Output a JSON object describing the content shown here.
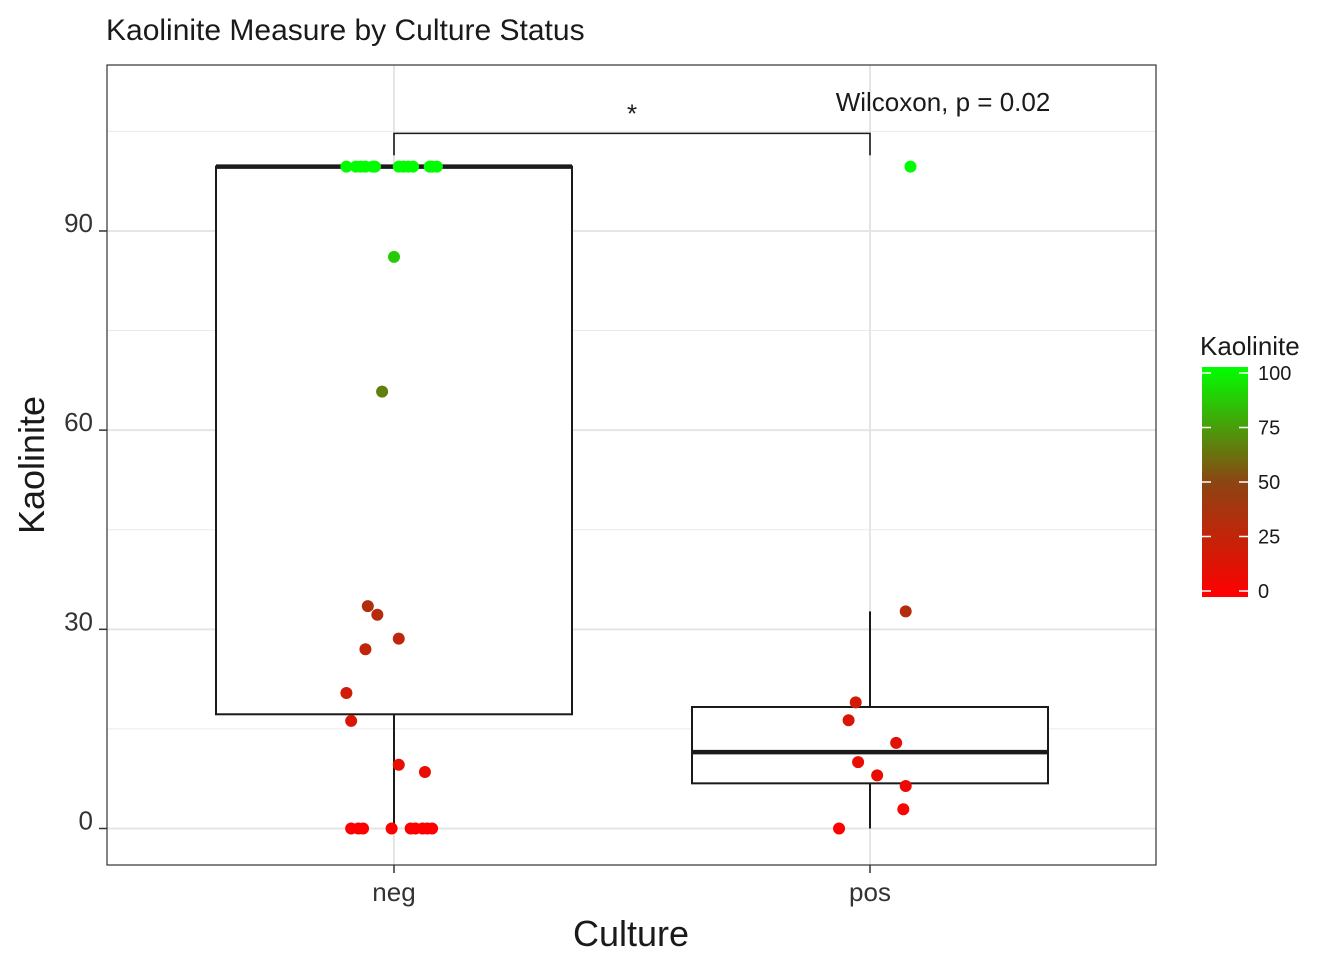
{
  "chart_data": {
    "type": "boxplot",
    "title": "Kaolinite Measure by Culture Status",
    "xlabel": "Culture",
    "ylabel": "Kaolinite",
    "categories": [
      "neg",
      "pos"
    ],
    "ylim": [
      -5.5,
      115
    ],
    "yticks": [
      0,
      30,
      60,
      90
    ],
    "grid": true,
    "boxes": [
      {
        "category": "neg",
        "lower_whisker": 0,
        "q1": 17.2,
        "median": 99.7,
        "q3": 99.7,
        "upper_whisker": 99.7
      },
      {
        "category": "pos",
        "lower_whisker": 0,
        "q1": 6.8,
        "median": 11.5,
        "q3": 18.3,
        "upper_whisker": 32.7
      }
    ],
    "points": [
      {
        "category": "neg",
        "offset": -0.1,
        "value": 99.7
      },
      {
        "category": "neg",
        "offset": -0.08,
        "value": 99.7
      },
      {
        "category": "neg",
        "offset": -0.07,
        "value": 99.7
      },
      {
        "category": "neg",
        "offset": -0.06,
        "value": 99.7
      },
      {
        "category": "neg",
        "offset": -0.045,
        "value": 99.7
      },
      {
        "category": "neg",
        "offset": -0.04,
        "value": 99.7
      },
      {
        "category": "neg",
        "offset": 0.01,
        "value": 99.7
      },
      {
        "category": "neg",
        "offset": 0.02,
        "value": 99.7
      },
      {
        "category": "neg",
        "offset": 0.03,
        "value": 99.7
      },
      {
        "category": "neg",
        "offset": 0.04,
        "value": 99.7
      },
      {
        "category": "neg",
        "offset": 0.075,
        "value": 99.7
      },
      {
        "category": "neg",
        "offset": 0.08,
        "value": 99.7
      },
      {
        "category": "neg",
        "offset": 0.09,
        "value": 99.7
      },
      {
        "category": "neg",
        "offset": 0.0,
        "value": 86.1
      },
      {
        "category": "neg",
        "offset": -0.025,
        "value": 65.8
      },
      {
        "category": "neg",
        "offset": -0.055,
        "value": 33.5
      },
      {
        "category": "neg",
        "offset": -0.035,
        "value": 32.2
      },
      {
        "category": "neg",
        "offset": 0.01,
        "value": 28.6
      },
      {
        "category": "neg",
        "offset": -0.06,
        "value": 27.0
      },
      {
        "category": "neg",
        "offset": -0.1,
        "value": 20.4
      },
      {
        "category": "neg",
        "offset": -0.09,
        "value": 16.2
      },
      {
        "category": "neg",
        "offset": 0.01,
        "value": 9.6
      },
      {
        "category": "neg",
        "offset": 0.065,
        "value": 8.5
      },
      {
        "category": "neg",
        "offset": -0.09,
        "value": 0
      },
      {
        "category": "neg",
        "offset": -0.075,
        "value": 0
      },
      {
        "category": "neg",
        "offset": -0.065,
        "value": 0
      },
      {
        "category": "neg",
        "offset": -0.005,
        "value": 0
      },
      {
        "category": "neg",
        "offset": 0.035,
        "value": 0
      },
      {
        "category": "neg",
        "offset": 0.045,
        "value": 0
      },
      {
        "category": "neg",
        "offset": 0.06,
        "value": 0
      },
      {
        "category": "neg",
        "offset": 0.07,
        "value": 0
      },
      {
        "category": "neg",
        "offset": 0.08,
        "value": 0
      },
      {
        "category": "pos",
        "offset": 0.085,
        "value": 99.7
      },
      {
        "category": "pos",
        "offset": 0.075,
        "value": 32.7
      },
      {
        "category": "pos",
        "offset": -0.03,
        "value": 19.0
      },
      {
        "category": "pos",
        "offset": -0.045,
        "value": 16.3
      },
      {
        "category": "pos",
        "offset": 0.055,
        "value": 12.9
      },
      {
        "category": "pos",
        "offset": -0.025,
        "value": 10.0
      },
      {
        "category": "pos",
        "offset": 0.015,
        "value": 8.0
      },
      {
        "category": "pos",
        "offset": 0.075,
        "value": 6.4
      },
      {
        "category": "pos",
        "offset": 0.07,
        "value": 2.9
      },
      {
        "category": "pos",
        "offset": -0.065,
        "value": 0
      }
    ],
    "significance": {
      "from": "neg",
      "to": "pos",
      "bracket_y": 104.7,
      "label": "*"
    },
    "annotation": "Wilcoxon, p = 0.02",
    "legend": {
      "title": "Kaolinite",
      "placement": "right",
      "ticks": [
        0,
        25,
        50,
        75,
        100
      ],
      "colors": {
        "low": "#ff0000",
        "mid": "#8b4513",
        "high": "#00ff00"
      }
    }
  }
}
